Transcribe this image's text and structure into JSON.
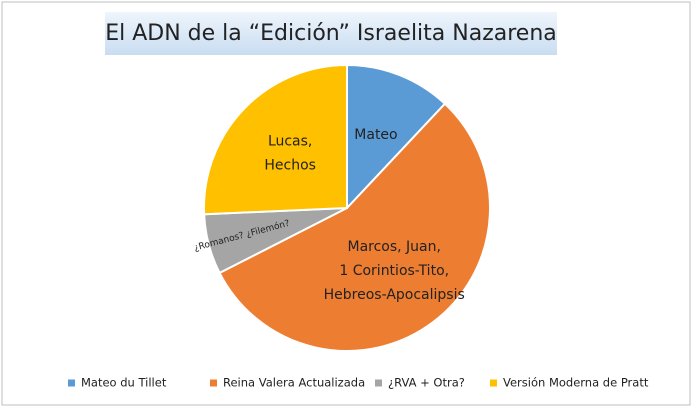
{
  "chart_data": {
    "type": "pie",
    "title": "El ADN de la “Edición” Israelita Nazarena",
    "categories": [
      "Mateo du Tillet",
      "Reina Valera Actualizada",
      "¿RVA + Otra?",
      "Versión Moderna de Pratt"
    ],
    "values": [
      12,
      55.5,
      6.8,
      25.7
    ],
    "colors": [
      "#5b9bd5",
      "#ed7d31",
      "#a5a5a5",
      "#ffc000"
    ],
    "slice_labels": [
      [
        "Mateo"
      ],
      [
        "Marcos, Juan,",
        "1 Corintios-Tito,",
        "Hebreos-Apocalipsis"
      ],
      [
        "¿Romanos? ¿Filemón?"
      ],
      [
        "Lucas,",
        "Hechos"
      ]
    ],
    "legend": "bottom"
  }
}
